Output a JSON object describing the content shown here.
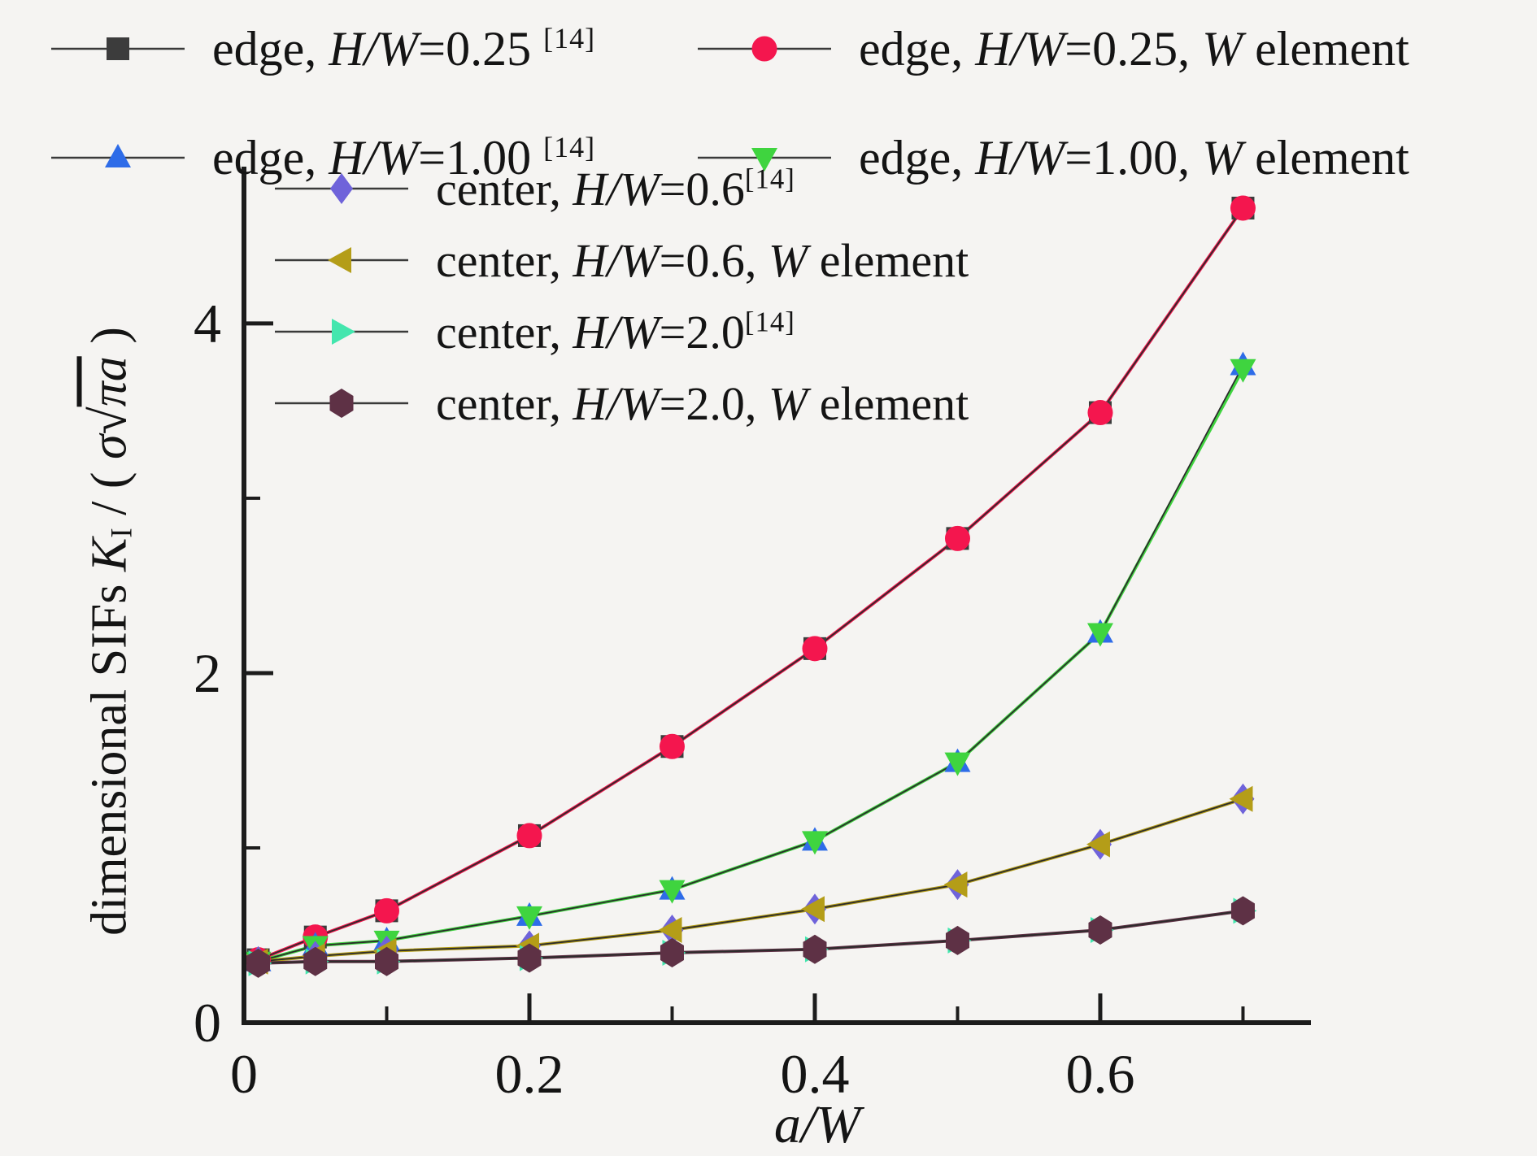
{
  "chart_data": {
    "type": "line",
    "title": "",
    "xlabel": "a/W",
    "ylabel": "dimensional SIFs K_I / ( σ√πa )",
    "x_max": 0.7476,
    "y_max": 4.897,
    "grid": false,
    "x": [
      0.01,
      0.05,
      0.1,
      0.2,
      0.3,
      0.4,
      0.5,
      0.6,
      0.7
    ],
    "x_axis": {
      "major": [
        0,
        0.2,
        0.4,
        0.6
      ],
      "minor": [
        0.1,
        0.3,
        0.5,
        0.7
      ],
      "tick_labels": [
        {
          "v": 0,
          "label": "0"
        },
        {
          "v": 0.2,
          "label": "0.2"
        },
        {
          "v": 0.4,
          "label": "0.4"
        },
        {
          "v": 0.6,
          "label": "0.6"
        }
      ]
    },
    "y_axis": {
      "major": [
        0,
        2,
        4
      ],
      "minor": [
        1,
        3
      ],
      "tick_labels": [
        {
          "v": 0,
          "label": "0"
        },
        {
          "v": 2,
          "label": "2"
        },
        {
          "v": 4,
          "label": "4"
        }
      ]
    },
    "series": [
      {
        "name": "edge, H/W=0.25 [14]",
        "marker": "square",
        "color": "#3c3c3c",
        "values": [
          0.36,
          0.49,
          0.64,
          1.07,
          1.58,
          2.14,
          2.77,
          3.49,
          4.66
        ]
      },
      {
        "name": "edge, H/W=0.25, W element",
        "marker": "circle",
        "color": "#f4164e",
        "values": [
          0.36,
          0.49,
          0.64,
          1.07,
          1.58,
          2.14,
          2.77,
          3.49,
          4.66
        ]
      },
      {
        "name": "edge, H/W=1.00 [14]",
        "marker": "triangle-up",
        "color": "#2e6ce8",
        "values": [
          0.35,
          0.44,
          0.47,
          0.61,
          0.76,
          1.04,
          1.49,
          2.23,
          3.76
        ]
      },
      {
        "name": "edge, H/W=1.00, W element",
        "marker": "triangle-down",
        "color": "#3fd43f",
        "values": [
          0.35,
          0.44,
          0.47,
          0.61,
          0.76,
          1.04,
          1.49,
          2.23,
          3.74
        ]
      },
      {
        "name": "center, H/W=0.6 [14]",
        "marker": "diamond",
        "color": "#6f63da",
        "values": [
          0.35,
          0.38,
          0.41,
          0.44,
          0.53,
          0.65,
          0.79,
          1.02,
          1.28
        ]
      },
      {
        "name": "center, H/W=0.6, W element",
        "marker": "triangle-left",
        "color": "#b49d18",
        "values": [
          0.35,
          0.38,
          0.41,
          0.44,
          0.53,
          0.65,
          0.79,
          1.02,
          1.28
        ]
      },
      {
        "name": "center, H/W=2.0 [14]",
        "marker": "triangle-right",
        "color": "#43e6ae",
        "values": [
          0.34,
          0.35,
          0.35,
          0.37,
          0.4,
          0.42,
          0.47,
          0.53,
          0.64
        ]
      },
      {
        "name": "center, H/W=2.0, W element",
        "marker": "hexagon",
        "color": "#5e3145",
        "values": [
          0.34,
          0.35,
          0.35,
          0.37,
          0.4,
          0.42,
          0.47,
          0.53,
          0.64
        ]
      }
    ],
    "legend": {
      "outer": [
        {
          "pre": "edge, ",
          "hw": "H/W",
          "val": "=0.25 ",
          "sup": "[14]",
          "sep": "",
          "w": "",
          "post": "",
          "marker": "square",
          "color": "#3c3c3c"
        },
        {
          "pre": "edge, ",
          "hw": "H/W",
          "val": "=0.25",
          "sup": "",
          "sep": ", ",
          "w": "W",
          "post": " element",
          "marker": "circle",
          "color": "#f4164e"
        },
        {
          "pre": "edge, ",
          "hw": "H/W",
          "val": "=1.00 ",
          "sup": "[14]",
          "sep": "",
          "w": "",
          "post": "",
          "marker": "triangle-up",
          "color": "#2e6ce8"
        },
        {
          "pre": "edge, ",
          "hw": "H/W",
          "val": "=1.00",
          "sup": "",
          "sep": ", ",
          "w": "W",
          "post": " element",
          "marker": "triangle-down",
          "color": "#3fd43f"
        }
      ],
      "inner": [
        {
          "pre": "center, ",
          "hw": "H/W",
          "val": "=0.6",
          "sup": "[14]",
          "sep": "",
          "w": "",
          "post": "",
          "marker": "diamond",
          "color": "#6f63da"
        },
        {
          "pre": "center, ",
          "hw": "H/W",
          "val": "=0.6",
          "sup": "",
          "sep": ", ",
          "w": "W",
          "post": " element",
          "marker": "triangle-left",
          "color": "#b49d18"
        },
        {
          "pre": "center, ",
          "hw": "H/W",
          "val": "=2.0",
          "sup": "[14]",
          "sep": "",
          "w": "",
          "post": "",
          "marker": "triangle-right",
          "color": "#43e6ae"
        },
        {
          "pre": "center, ",
          "hw": "H/W",
          "val": "=2.0",
          "sup": "",
          "sep": ", ",
          "w": "W",
          "post": " element",
          "marker": "hexagon",
          "color": "#5e3145"
        }
      ]
    },
    "ylabel_parts": {
      "p1": "dimensional SIFs ",
      "k": "K",
      "ksub": "I",
      "p2": " / ( ",
      "sigma": "σ",
      "root": "√",
      "rad": "πa",
      "p3": " )"
    },
    "xlabel_parts": {
      "aw": "a/W"
    },
    "background": "#f5f4f2",
    "axis_color": "#1c1c1c"
  }
}
